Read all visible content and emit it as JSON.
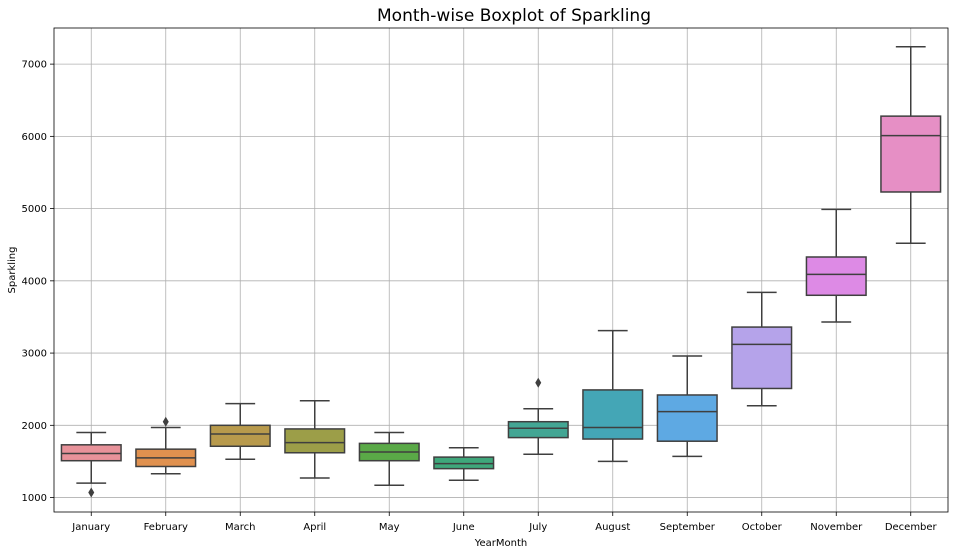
{
  "chart_data": {
    "type": "box",
    "title": "Month-wise Boxplot of Sparkling",
    "xlabel": "YearMonth",
    "ylabel": "Sparkling",
    "ylim": [
      800,
      7500
    ],
    "yticks": [
      1000,
      2000,
      3000,
      4000,
      5000,
      6000,
      7000
    ],
    "grid": true,
    "categories": [
      "January",
      "February",
      "March",
      "April",
      "May",
      "June",
      "July",
      "August",
      "September",
      "October",
      "November",
      "December"
    ],
    "boxes": [
      {
        "min": 1200,
        "q1": 1510,
        "median": 1610,
        "q3": 1730,
        "max": 1900,
        "outliers": [
          1070
        ],
        "color": "#e8929a"
      },
      {
        "min": 1330,
        "q1": 1430,
        "median": 1550,
        "q3": 1670,
        "max": 1970,
        "outliers": [
          2050
        ],
        "color": "#e0914f"
      },
      {
        "min": 1530,
        "q1": 1710,
        "median": 1880,
        "q3": 2000,
        "max": 2300,
        "outliers": [],
        "color": "#b89a4c"
      },
      {
        "min": 1270,
        "q1": 1620,
        "median": 1760,
        "q3": 1950,
        "max": 2340,
        "outliers": [],
        "color": "#9c9e48"
      },
      {
        "min": 1170,
        "q1": 1510,
        "median": 1630,
        "q3": 1750,
        "max": 1900,
        "outliers": [],
        "color": "#5aa947"
      },
      {
        "min": 1240,
        "q1": 1400,
        "median": 1470,
        "q3": 1560,
        "max": 1690,
        "outliers": [],
        "color": "#3fa77b"
      },
      {
        "min": 1600,
        "q1": 1830,
        "median": 1960,
        "q3": 2050,
        "max": 2230,
        "outliers": [
          2590
        ],
        "color": "#43a694"
      },
      {
        "min": 1500,
        "q1": 1810,
        "median": 1970,
        "q3": 2490,
        "max": 3310,
        "outliers": [],
        "color": "#44a6b6"
      },
      {
        "min": 1570,
        "q1": 1780,
        "median": 2190,
        "q3": 2420,
        "max": 2960,
        "outliers": [],
        "color": "#5ea9e3"
      },
      {
        "min": 2270,
        "q1": 2510,
        "median": 3120,
        "q3": 3360,
        "max": 3840,
        "outliers": [],
        "color": "#b5a3ea"
      },
      {
        "min": 3430,
        "q1": 3800,
        "median": 4090,
        "q3": 4330,
        "max": 4990,
        "outliers": [],
        "color": "#dd8ae5"
      },
      {
        "min": 4520,
        "q1": 5230,
        "median": 6010,
        "q3": 6280,
        "max": 7240,
        "outliers": [],
        "color": "#e68fc5"
      }
    ]
  }
}
